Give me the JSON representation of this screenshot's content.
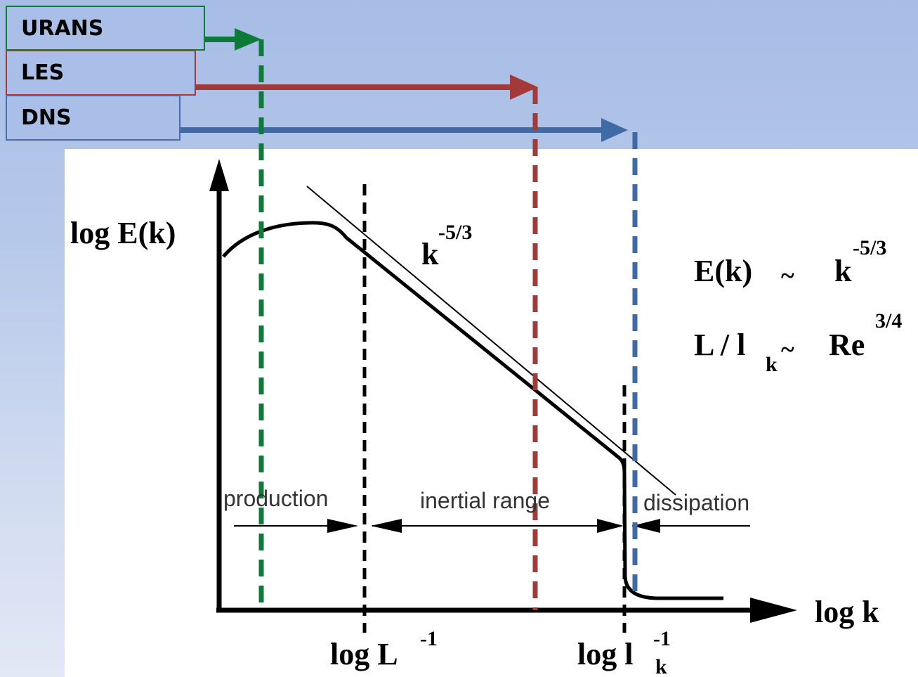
{
  "methods": [
    {
      "label": "URANS",
      "color": "#0e7a3a"
    },
    {
      "label": "LES",
      "color": "#a13a38"
    },
    {
      "label": "DNS",
      "color": "#3f6aa3"
    }
  ],
  "diagram": {
    "y_axis_label": "log E(k)",
    "x_axis_label": "log k",
    "slope_label": {
      "base": "k",
      "exp": "-5/3"
    },
    "tick_L": {
      "base": "log L",
      "exp": "-1"
    },
    "tick_lk": {
      "base": "log l",
      "sub": "k",
      "exp": "-1"
    },
    "regions": {
      "production": "production",
      "inertial": "inertial range",
      "dissipation": "dissipation"
    },
    "relation1": {
      "lhs": "E(k)",
      "tilde": "~",
      "base": "k",
      "exp": "-5/3"
    },
    "relation2": {
      "lhs": "L / l",
      "sub": "k",
      "tilde": "~",
      "base": "Re",
      "exp": "3/4"
    }
  }
}
